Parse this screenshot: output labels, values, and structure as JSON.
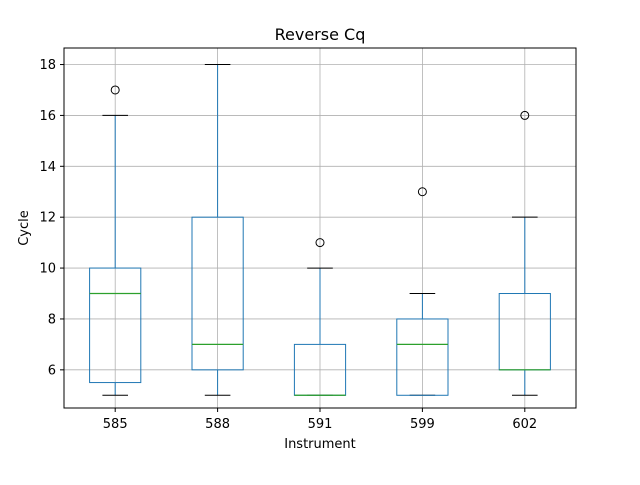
{
  "chart_data": {
    "type": "boxplot",
    "title": "Reverse Cq",
    "xlabel": "Instrument",
    "ylabel": "Cycle",
    "ylim": [
      4.5,
      18.65
    ],
    "yticks": [
      6,
      8,
      10,
      12,
      14,
      16,
      18
    ],
    "grid": true,
    "categories": [
      "585",
      "588",
      "591",
      "599",
      "602"
    ],
    "boxes": [
      {
        "category": "585",
        "whisker_low": 5,
        "q1": 5.5,
        "median": 9,
        "q3": 10,
        "whisker_high": 16,
        "outliers": [
          17
        ]
      },
      {
        "category": "588",
        "whisker_low": 5,
        "q1": 6,
        "median": 7,
        "q3": 12,
        "whisker_high": 18,
        "outliers": []
      },
      {
        "category": "591",
        "whisker_low": 5,
        "q1": 5,
        "median": 5,
        "q3": 7,
        "whisker_high": 10,
        "outliers": [
          11
        ]
      },
      {
        "category": "599",
        "whisker_low": 5,
        "q1": 5,
        "median": 7,
        "q3": 8,
        "whisker_high": 9,
        "outliers": [
          13
        ]
      },
      {
        "category": "602",
        "whisker_low": 5,
        "q1": 6,
        "median": 6,
        "q3": 9,
        "whisker_high": 12,
        "outliers": [
          16
        ]
      }
    ],
    "colors": {
      "box": "#1f77b4",
      "median": "#2ca02c",
      "whisker_cap": "#000000",
      "grid": "#b0b0b0",
      "axes": "#000000"
    }
  }
}
